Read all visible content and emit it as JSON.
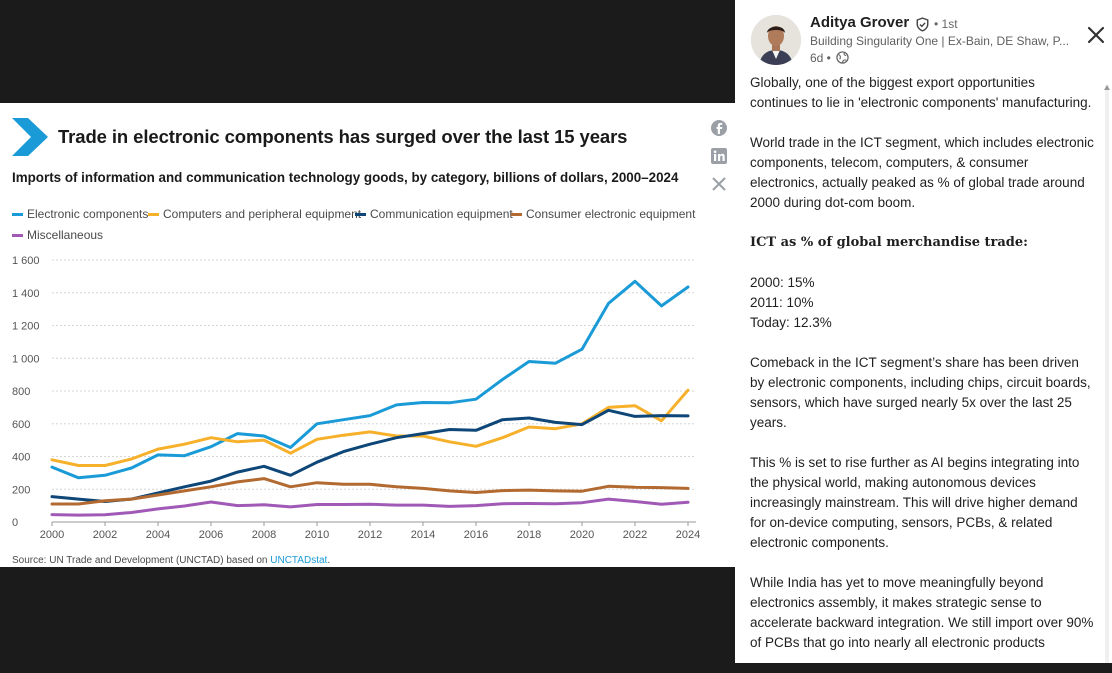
{
  "post": {
    "author": "Aditya Grover",
    "degree": "• 1st",
    "headline": "Building Singularity One | Ex-Bain, DE Shaw, P...",
    "time": "6d •",
    "paragraphs": [
      "Globally, one of the biggest export opportunities continues to lie in 'electronic components' manufacturing.",
      "World trade in the ICT segment, which includes electronic components, telecom, computers, & consumer electronics, actually peaked as % of global trade around 2000 during dot-com boom.",
      "𝐈𝐂𝐓 𝐚𝐬 % 𝐨𝐟 𝐠𝐥𝐨𝐛𝐚𝐥 𝐦𝐞𝐫𝐜𝐡𝐚𝐧𝐝𝐢𝐬𝐞 𝐭𝐫𝐚𝐝𝐞:",
      "2000: 15%",
      "2011: 10%",
      "Today: 12.3%",
      "Comeback in the ICT segment’s share has been driven by electronic components, including chips, circuit boards, sensors, which have surged nearly 5x over the last 25 years.",
      "This % is set to rise further as AI begins integrating into the physical world, making autonomous devices increasingly mainstream. This will drive higher demand for on-device computing, sensors, PCBs, & related electronic components.",
      "While India has yet to move meaningfully beyond electronics assembly, it makes strategic sense to accelerate backward integration. We still import over 90% of PCBs that go into nearly all electronic products"
    ]
  },
  "icons": {
    "verified": "verified-shield-icon",
    "globe": "globe-icon",
    "close": "close-icon",
    "facebook": "facebook-icon",
    "linkedin": "linkedin-icon",
    "x": "x-icon",
    "chevron": "chevron-right-icon"
  },
  "source": {
    "prefix": "Source: UN Trade and Development (UNCTAD) based on ",
    "link": "UNCTADstat",
    "suffix": "."
  },
  "chart_data": {
    "type": "line",
    "title": "Trade in electronic components has surged over the last 15 years",
    "subtitle": "Imports of information and communication technology goods, by category, billions of dollars, 2000–2024",
    "xlabel": "",
    "ylabel": "",
    "xlim": [
      2000,
      2024
    ],
    "ylim": [
      0,
      1600
    ],
    "x": [
      2000,
      2001,
      2002,
      2003,
      2004,
      2005,
      2006,
      2007,
      2008,
      2009,
      2010,
      2011,
      2012,
      2013,
      2014,
      2015,
      2016,
      2017,
      2018,
      2019,
      2020,
      2021,
      2022,
      2023,
      2024
    ],
    "xticks": [
      "2000",
      "2002",
      "2004",
      "2006",
      "2008",
      "2010",
      "2012",
      "2014",
      "2016",
      "2018",
      "2020",
      "2022",
      "2024"
    ],
    "yticks": [
      "0",
      "200",
      "400",
      "600",
      "800",
      "1 000",
      "1 200",
      "1 400",
      "1 600"
    ],
    "grid": true,
    "legend_position": "top-left",
    "series": [
      {
        "name": "Electronic components",
        "color": "#1a9bd7",
        "values": [
          335,
          270,
          285,
          330,
          410,
          405,
          460,
          540,
          525,
          455,
          600,
          625,
          650,
          715,
          730,
          728,
          750,
          870,
          980,
          970,
          1055,
          1335,
          1470,
          1320,
          1435
        ]
      },
      {
        "name": "Computers and peripheral equipment",
        "color": "#f7b02a",
        "values": [
          380,
          345,
          345,
          385,
          445,
          475,
          515,
          490,
          500,
          420,
          505,
          530,
          550,
          525,
          525,
          490,
          462,
          515,
          580,
          570,
          600,
          700,
          710,
          618,
          805
        ]
      },
      {
        "name": "Communication equipment",
        "color": "#0d4677",
        "values": [
          155,
          140,
          125,
          140,
          178,
          215,
          250,
          305,
          340,
          285,
          365,
          430,
          475,
          515,
          540,
          565,
          560,
          625,
          635,
          608,
          595,
          682,
          645,
          650,
          648
        ]
      },
      {
        "name": "Consumer electronic equipment",
        "color": "#b26a30",
        "values": [
          110,
          110,
          130,
          140,
          165,
          190,
          215,
          245,
          265,
          215,
          240,
          230,
          230,
          215,
          205,
          190,
          180,
          192,
          195,
          190,
          188,
          218,
          212,
          210,
          205
        ]
      },
      {
        "name": "Miscellaneous",
        "color": "#a05ab6",
        "values": [
          45,
          42,
          44,
          58,
          80,
          98,
          122,
          100,
          105,
          92,
          107,
          107,
          108,
          103,
          103,
          95,
          100,
          112,
          113,
          112,
          118,
          140,
          125,
          108,
          120
        ]
      }
    ]
  }
}
